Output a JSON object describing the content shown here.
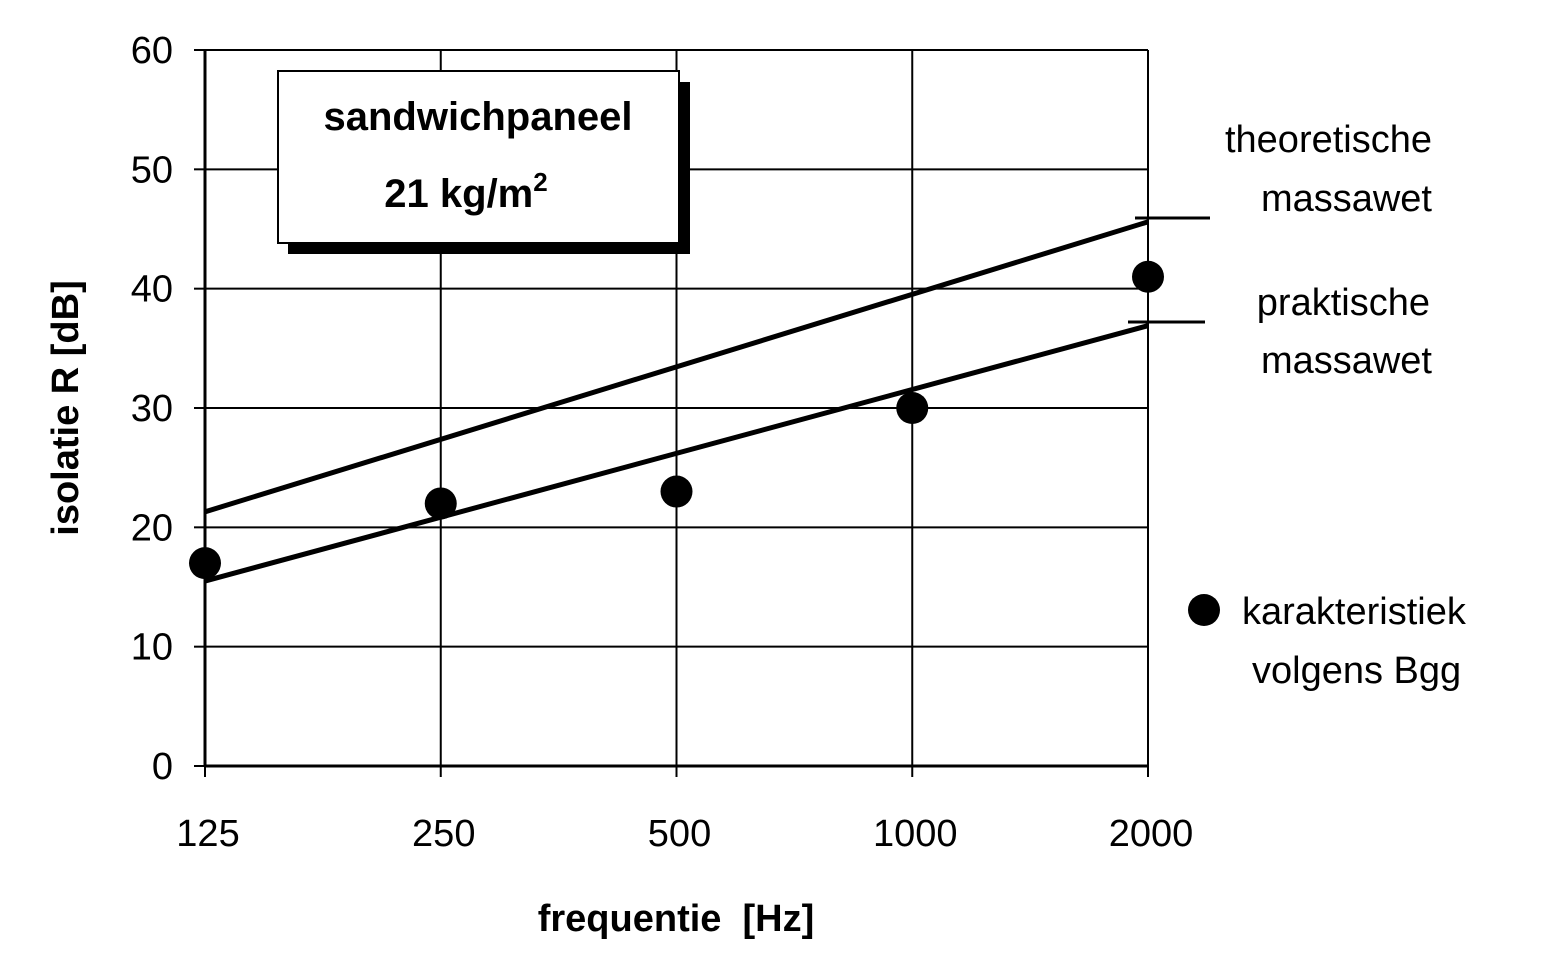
{
  "chart_data": {
    "type": "scatter",
    "title": "sandwichpaneel",
    "subtitle_value": "21 kg/m",
    "subtitle_sup": "2",
    "xlabel": "frequentie  [Hz]",
    "ylabel": "isolatie  R  [dB]",
    "x_scale": "log2",
    "categories": [
      "125",
      "250",
      "500",
      "1000",
      "2000"
    ],
    "x": [
      125,
      250,
      500,
      1000,
      2000
    ],
    "ylim": [
      0,
      60
    ],
    "yticks": [
      "0",
      "10",
      "20",
      "30",
      "40",
      "50",
      "60"
    ],
    "grid": true,
    "series": [
      {
        "name_lines": [
          "karakteristiek",
          "volgens Bgg"
        ],
        "kind": "points",
        "x": [
          125,
          250,
          500,
          1000,
          2000
        ],
        "values": [
          17,
          22,
          23,
          30,
          41
        ]
      },
      {
        "name_lines": [
          "theoretische",
          "massawet"
        ],
        "kind": "line",
        "x": [
          125,
          2000
        ],
        "values": [
          21.3,
          45.6
        ]
      },
      {
        "name_lines": [
          "praktische",
          "massawet"
        ],
        "kind": "line",
        "x": [
          125,
          2000
        ],
        "values": [
          15.5,
          36.9
        ]
      }
    ]
  }
}
